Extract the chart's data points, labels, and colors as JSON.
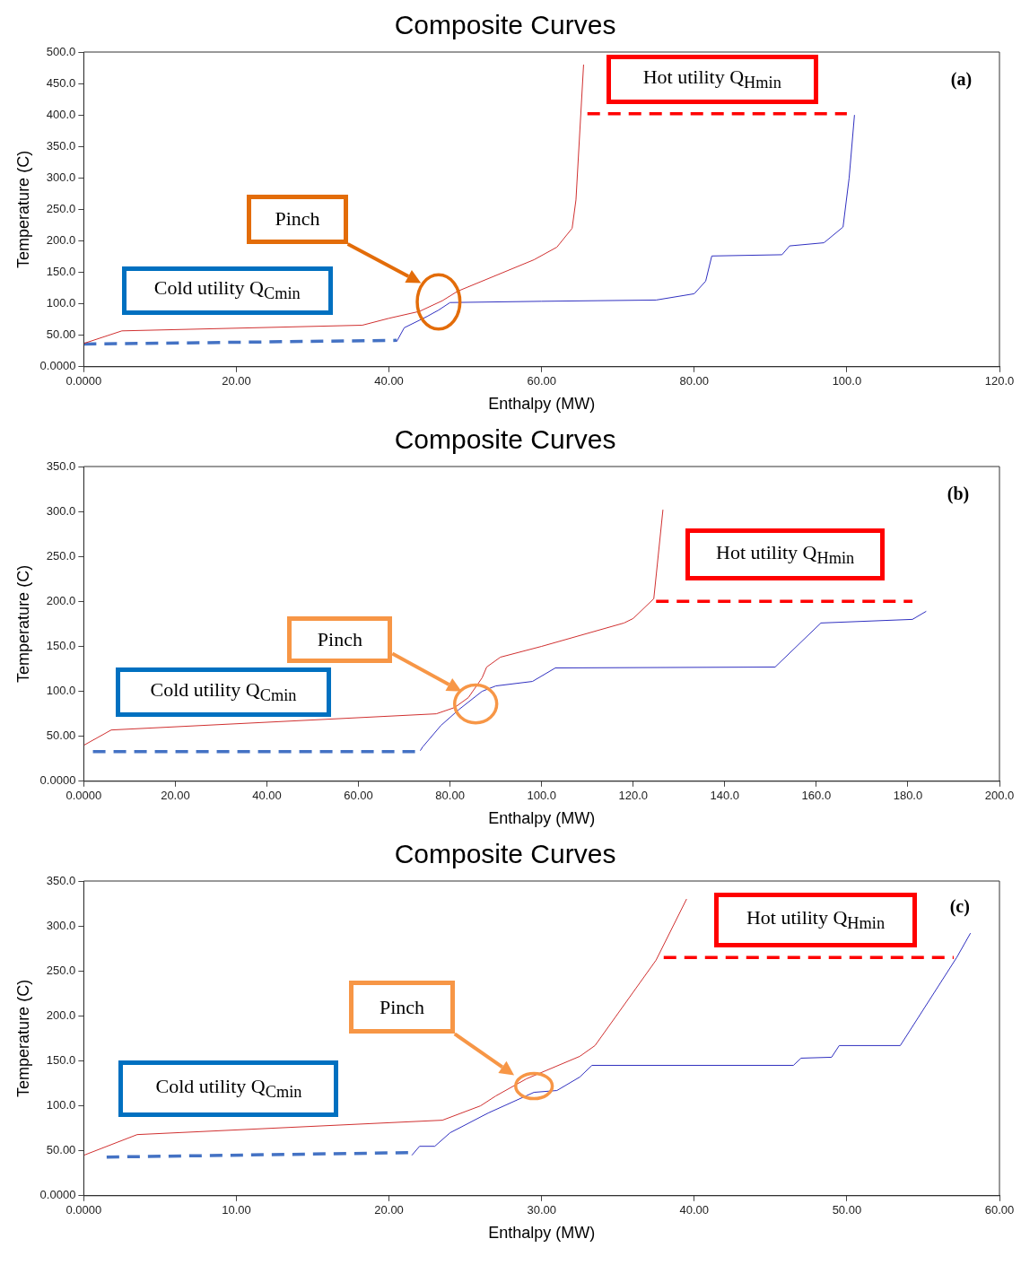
{
  "chart_data": [
    {
      "type": "line",
      "title": "Composite Curves",
      "xlabel": "Enthalpy (MW)",
      "ylabel": "Temperature (C)",
      "grid": false,
      "xlim": [
        0,
        120
      ],
      "xticks": [
        {
          "value": 0,
          "label": "0.0000"
        },
        {
          "value": 20,
          "label": "20.00"
        },
        {
          "value": 40,
          "label": "40.00"
        },
        {
          "value": 60,
          "label": "60.00"
        },
        {
          "value": 80,
          "label": "80.00"
        },
        {
          "value": 100,
          "label": "100.0"
        },
        {
          "value": 120,
          "label": "120.0"
        }
      ],
      "ylim": [
        0,
        500
      ],
      "yticks": [
        {
          "value": 0,
          "label": "0.0000"
        },
        {
          "value": 50,
          "label": "50.00"
        },
        {
          "value": 100,
          "label": "100.0"
        },
        {
          "value": 150,
          "label": "150.0"
        },
        {
          "value": 200,
          "label": "200.0"
        },
        {
          "value": 250,
          "label": "250.0"
        },
        {
          "value": 300,
          "label": "300.0"
        },
        {
          "value": 350,
          "label": "350.0"
        },
        {
          "value": 400,
          "label": "400.0"
        },
        {
          "value": 450,
          "label": "450.0"
        },
        {
          "value": 500,
          "label": "500.0"
        }
      ],
      "series": [
        {
          "color": "#d03030",
          "x": [
            0,
            5,
            36.5,
            40,
            44,
            47,
            49,
            59,
            62,
            64,
            64.5,
            65.5
          ],
          "values": [
            37,
            57,
            66,
            77,
            88,
            105,
            120,
            170,
            190,
            220,
            265,
            480
          ]
        },
        {
          "color": "#3030c0",
          "x": [
            41,
            42,
            45,
            46.5,
            48,
            60,
            75,
            80,
            81.5,
            82.3,
            91.5,
            92.5,
            97,
            99.5,
            100.3,
            101
          ],
          "values": [
            40,
            62,
            80,
            90,
            102,
            104,
            106,
            116,
            136,
            176,
            178,
            192,
            197,
            222,
            300,
            400
          ]
        },
        {
          "color": "#ff0000",
          "line_style": "dashed",
          "x": [
            66,
            100
          ],
          "values": [
            402,
            402
          ]
        },
        {
          "color": "#4472c4",
          "line_style": "dashed",
          "x": [
            0,
            41
          ],
          "values": [
            36,
            42
          ]
        }
      ],
      "annotations": [
        "Hot utility Q$_{Hmin}$",
        "Cold utility Q$_{Cmin}$",
        "Pinch",
        "(a)"
      ]
    },
    {
      "type": "line",
      "title": "Composite Curves",
      "xlabel": "Enthalpy (MW)",
      "ylabel": "Temperature (C)",
      "grid": false,
      "xlim": [
        0,
        200
      ],
      "xticks": [
        {
          "value": 0,
          "label": "0.0000"
        },
        {
          "value": 20,
          "label": "20.00"
        },
        {
          "value": 40,
          "label": "40.00"
        },
        {
          "value": 60,
          "label": "60.00"
        },
        {
          "value": 80,
          "label": "80.00"
        },
        {
          "value": 100,
          "label": "100.0"
        },
        {
          "value": 120,
          "label": "120.0"
        },
        {
          "value": 140,
          "label": "140.0"
        },
        {
          "value": 160,
          "label": "160.0"
        },
        {
          "value": 180,
          "label": "180.0"
        },
        {
          "value": 200,
          "label": "200.0"
        }
      ],
      "ylim": [
        0,
        350
      ],
      "yticks": [
        {
          "value": 0,
          "label": "0.0000"
        },
        {
          "value": 50,
          "label": "50.00"
        },
        {
          "value": 100,
          "label": "100.0"
        },
        {
          "value": 150,
          "label": "150.0"
        },
        {
          "value": 200,
          "label": "200.0"
        },
        {
          "value": 250,
          "label": "250.0"
        },
        {
          "value": 300,
          "label": "300.0"
        },
        {
          "value": 350,
          "label": "350.0"
        }
      ],
      "series": [
        {
          "color": "#d03030",
          "x": [
            0,
            6,
            77,
            81,
            84,
            87,
            88,
            91,
            100,
            118,
            120,
            124.5,
            126.5
          ],
          "values": [
            40,
            57,
            75,
            82,
            93,
            115,
            127,
            138,
            150,
            176,
            181,
            203,
            302
          ]
        },
        {
          "color": "#3030c0",
          "x": [
            73.5,
            74,
            78,
            82,
            87,
            90,
            98,
            103,
            151,
            161,
            181,
            184
          ],
          "values": [
            34,
            38,
            62,
            80,
            100,
            106,
            111,
            126,
            127,
            176,
            180,
            189
          ]
        },
        {
          "color": "#ff0000",
          "line_style": "dashed",
          "x": [
            125,
            181
          ],
          "values": [
            200,
            200
          ]
        },
        {
          "color": "#4472c4",
          "line_style": "dashed",
          "x": [
            2,
            73.5
          ],
          "values": [
            33,
            33
          ]
        }
      ],
      "annotations": [
        "Hot utility Q$_{Hmin}$",
        "Cold utility Q$_{Cmin}$",
        "Pinch",
        "(b)"
      ]
    },
    {
      "type": "line",
      "title": "Composite Curves",
      "xlabel": "Enthalpy (MW)",
      "ylabel": "Temperature (C)",
      "grid": false,
      "xlim": [
        0,
        60
      ],
      "xticks": [
        {
          "value": 0,
          "label": "0.0000"
        },
        {
          "value": 10,
          "label": "10.00"
        },
        {
          "value": 20,
          "label": "20.00"
        },
        {
          "value": 30,
          "label": "30.00"
        },
        {
          "value": 40,
          "label": "40.00"
        },
        {
          "value": 50,
          "label": "50.00"
        },
        {
          "value": 60,
          "label": "60.00"
        }
      ],
      "ylim": [
        0,
        350
      ],
      "yticks": [
        {
          "value": 0,
          "label": "0.0000"
        },
        {
          "value": 50,
          "label": "50.00"
        },
        {
          "value": 100,
          "label": "100.0"
        },
        {
          "value": 150,
          "label": "150.0"
        },
        {
          "value": 200,
          "label": "200.0"
        },
        {
          "value": 250,
          "label": "250.0"
        },
        {
          "value": 300,
          "label": "300.0"
        },
        {
          "value": 350,
          "label": "350.0"
        }
      ],
      "series": [
        {
          "color": "#d03030",
          "x": [
            0,
            3.5,
            23.5,
            26,
            27,
            29,
            32.5,
            33.5,
            37.5,
            39.5
          ],
          "values": [
            45,
            68,
            84,
            100,
            111,
            130,
            155,
            167,
            262,
            330
          ]
        },
        {
          "color": "#3030c0",
          "x": [
            21.5,
            22,
            23,
            24,
            26.5,
            29.5,
            31,
            32.5,
            33.3,
            46.5,
            47,
            49,
            49.5,
            53.5,
            57.2,
            58.1
          ],
          "values": [
            45,
            55,
            55,
            70,
            92,
            115,
            117,
            132,
            145,
            145,
            153,
            154,
            167,
            167,
            265,
            292
          ]
        },
        {
          "color": "#ff0000",
          "line_style": "dashed",
          "x": [
            38,
            57
          ],
          "values": [
            265,
            265
          ]
        },
        {
          "color": "#4472c4",
          "line_style": "dashed",
          "x": [
            1.5,
            21.5
          ],
          "values": [
            43,
            48
          ]
        }
      ],
      "annotations": [
        "Hot utility Q$_{Hmin}$",
        "Cold utility Q$_{Cmin}$",
        "Pinch",
        "(c)"
      ]
    }
  ]
}
